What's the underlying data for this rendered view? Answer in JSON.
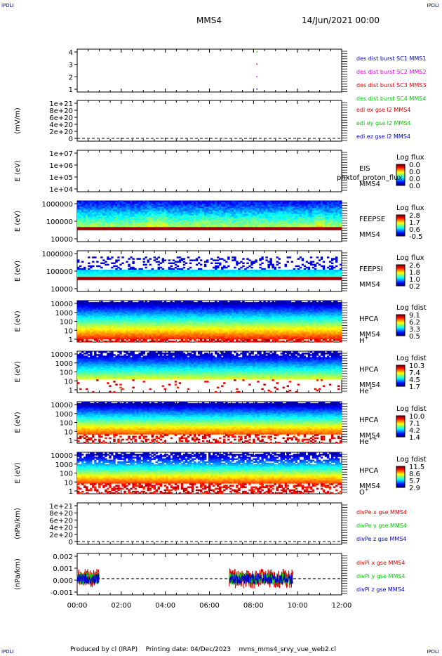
{
  "corner_tag": "IPDLI",
  "header": {
    "spacecraft": "MMS4",
    "date": "14/Jun/2021 00:00"
  },
  "footer": {
    "produced": "Produced by cl (IRAP)",
    "printing": "Printing date: 04/Dec/2023",
    "script": "mms_mms4_srvy_vue_web2.cl"
  },
  "colors": {
    "blue": "#0000cc",
    "magenta": "#dd00dd",
    "red": "#dd0000",
    "green": "#00cc00"
  },
  "chart_data": [
    {
      "type": "scatter",
      "id": "burst",
      "ylim": [
        0.5,
        4.5
      ],
      "yticks": [
        "1",
        "2",
        "3",
        "4"
      ],
      "series": [
        {
          "name": "des dist burst SC1 MMS1",
          "color": "#0000cc",
          "x_hours": [
            8.13
          ],
          "y": 1
        },
        {
          "name": "des dist burst SC2 MMS2",
          "color": "#dd00dd",
          "x_hours": [
            8.13
          ],
          "y": 2
        },
        {
          "name": "des dist burst SC3 MMS3",
          "color": "#dd0000",
          "x_hours": [
            8.13
          ],
          "y": 3
        },
        {
          "name": "des dist burst SC4 MMS4",
          "color": "#00cc00",
          "x_hours": [
            8.13
          ],
          "y": 4
        }
      ]
    },
    {
      "type": "line",
      "id": "edi",
      "ylabel": "(mV/m)",
      "yticks": [
        "0",
        "2e+20",
        "4e+20",
        "6e+20",
        "8e+20",
        "1e+21"
      ],
      "series": [
        {
          "name": "edi ex gse l2 MMS4",
          "color": "#dd0000"
        },
        {
          "name": "edi ey gse l2 MMS4",
          "color": "#00cc00"
        },
        {
          "name": "edi ez gse l2 MMS4",
          "color": "#0000cc"
        }
      ]
    },
    {
      "type": "heatmap",
      "id": "eis",
      "ylabel": "E (eV)",
      "yscale": "log",
      "yticks": [
        "1e+04",
        "1e+05",
        "1e+06",
        "1e+07"
      ],
      "label1": "EIS",
      "label2": "MMS4",
      "overlay": "phxtof_proton_flux",
      "colorbar": {
        "title": "Log flux",
        "ticks": [
          "0.0",
          "0.0",
          "0.0",
          "0.0"
        ]
      }
    },
    {
      "type": "heatmap",
      "id": "feepse",
      "ylabel": "E (eV)",
      "yscale": "log",
      "yticks": [
        "10000",
        "100000",
        "1000000"
      ],
      "label1": "FEEPSE",
      "label2": "MMS4",
      "colorbar": {
        "title": "Log flux",
        "ticks": [
          "2.8",
          "1.7",
          "0.6",
          "-0.5"
        ]
      }
    },
    {
      "type": "heatmap",
      "id": "feepsi",
      "ylabel": "E (eV)",
      "yscale": "log",
      "yticks": [
        "10000",
        "100000",
        "1000000"
      ],
      "label1": "FEEPSI",
      "label2": "MMS4",
      "colorbar": {
        "title": "Log flux",
        "ticks": [
          "2.6",
          "1.8",
          "1.0",
          "0.2"
        ]
      }
    },
    {
      "type": "heatmap",
      "id": "hpca_h",
      "ylabel": "E (eV)",
      "yscale": "log",
      "yticks": [
        "1",
        "10",
        "100",
        "1000",
        "10000"
      ],
      "label1": "HPCA",
      "label2": "MMS4",
      "species": "H",
      "charge": "+",
      "colorbar": {
        "title": "Log fdist",
        "ticks": [
          "9.1",
          "6.2",
          "3.3",
          "0.5"
        ]
      }
    },
    {
      "type": "heatmap",
      "id": "hpca_he",
      "ylabel": "E (eV)",
      "yscale": "log",
      "yticks": [
        "1",
        "10",
        "100",
        "1000",
        "10000"
      ],
      "label1": "HPCA",
      "label2": "MMS4",
      "species": "He",
      "charge": "+",
      "colorbar": {
        "title": "Log fdist",
        "ticks": [
          "10.3",
          "7.4",
          "4.5",
          "1.7"
        ]
      }
    },
    {
      "type": "heatmap",
      "id": "hpca_he2",
      "ylabel": "E (eV)",
      "yscale": "log",
      "yticks": [
        "1",
        "10",
        "100",
        "1000",
        "10000"
      ],
      "label1": "HPCA",
      "label2": "MMS4",
      "species": "He",
      "charge": "++",
      "colorbar": {
        "title": "Log fdist",
        "ticks": [
          "10.0",
          "7.1",
          "4.2",
          "1.4"
        ]
      }
    },
    {
      "type": "heatmap",
      "id": "hpca_o",
      "ylabel": "E (eV)",
      "yscale": "log",
      "yticks": [
        "1",
        "10",
        "100",
        "1000",
        "10000"
      ],
      "label1": "HPCA",
      "label2": "MMS4",
      "species": "O",
      "charge": "+",
      "colorbar": {
        "title": "Log fdist",
        "ticks": [
          "11.5",
          "8.6",
          "5.7",
          "2.9"
        ]
      }
    },
    {
      "type": "line",
      "id": "divpe",
      "ylabel": "(nPa/km)",
      "yticks": [
        "0",
        "2e+20",
        "4e+20",
        "6e+20",
        "8e+20",
        "1e+21"
      ],
      "series": [
        {
          "name": "divPe x gse MMS4",
          "color": "#dd0000"
        },
        {
          "name": "divPe y gse MMS4",
          "color": "#00cc00"
        },
        {
          "name": "divPe z gse MMS4",
          "color": "#0000cc"
        }
      ]
    },
    {
      "type": "line",
      "id": "divpi",
      "ylabel": "(nPa/km)",
      "ylim": [
        -0.0015,
        0.0025
      ],
      "yticks": [
        "-0.001",
        "0.000",
        "0.001",
        "0.002"
      ],
      "data_intervals_hours": [
        [
          0.0,
          1.0
        ],
        [
          6.9,
          9.8
        ]
      ],
      "series": [
        {
          "name": "divPi x gse MMS4",
          "color": "#dd0000"
        },
        {
          "name": "divPi y gse MMS4",
          "color": "#00cc00"
        },
        {
          "name": "divPi z gse MMS4",
          "color": "#0000cc"
        }
      ]
    }
  ],
  "xaxis": {
    "range_hours": [
      0,
      12
    ],
    "ticks": [
      "00:00",
      "02:00",
      "04:00",
      "06:00",
      "08:00",
      "10:00",
      "12:00"
    ]
  }
}
